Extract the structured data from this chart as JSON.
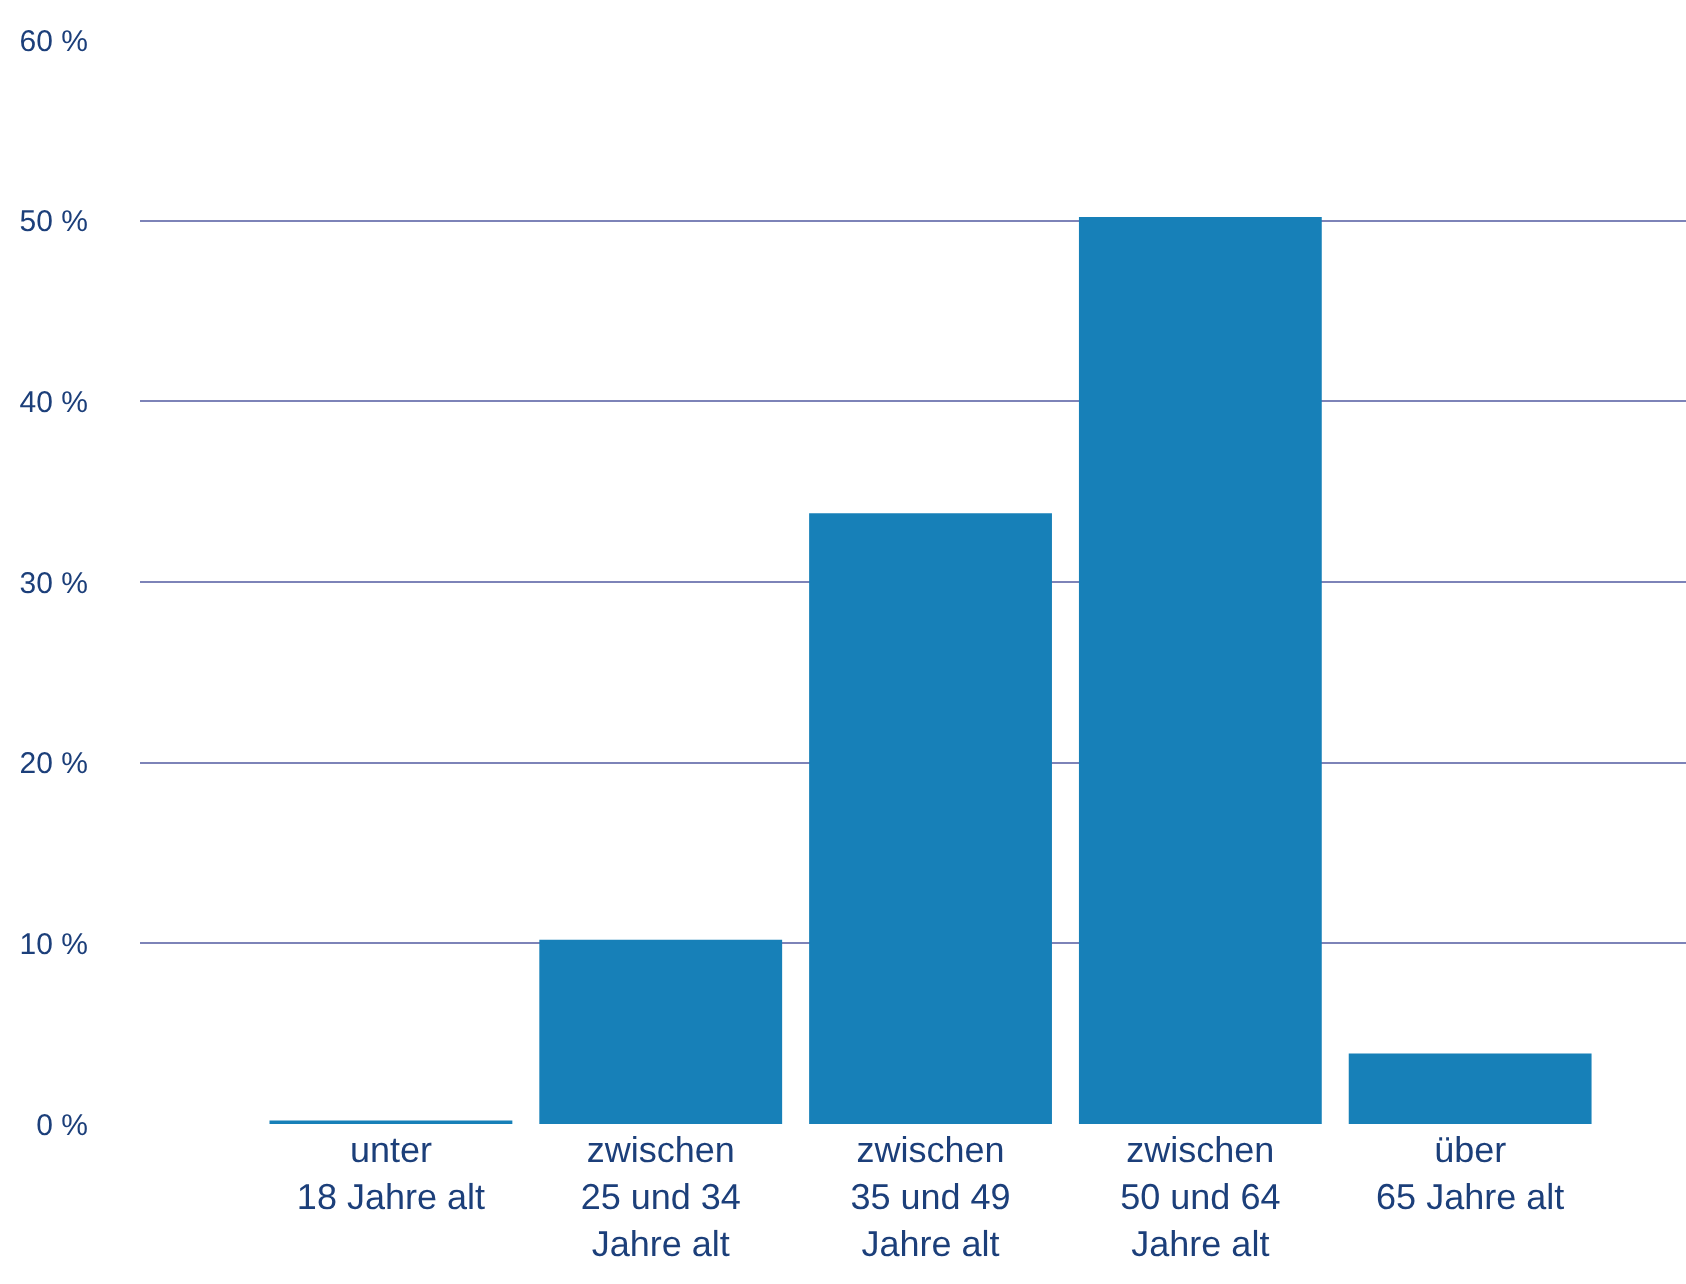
{
  "chart_data": {
    "type": "bar",
    "categories": [
      "unter\n18 Jahre alt",
      "zwischen\n25 und 34\nJahre alt",
      "zwischen\n35 und 49\nJahre alt",
      "zwischen\n50 und 64\nJahre alt",
      "über\n65 Jahre alt"
    ],
    "values": [
      0.2,
      10.2,
      33.8,
      50.2,
      3.9
    ],
    "color": "#1780b8",
    "ylim": [
      0,
      60
    ],
    "yticks": [
      {
        "value": 0,
        "label": "0 %"
      },
      {
        "value": 10,
        "label": "10 %"
      },
      {
        "value": 20,
        "label": "20 %"
      },
      {
        "value": 30,
        "label": "30 %"
      },
      {
        "value": 40,
        "label": "40 %"
      },
      {
        "value": 50,
        "label": "50 %"
      },
      {
        "value": 60,
        "label": "60 %"
      }
    ],
    "grid": "y",
    "legend": false
  }
}
